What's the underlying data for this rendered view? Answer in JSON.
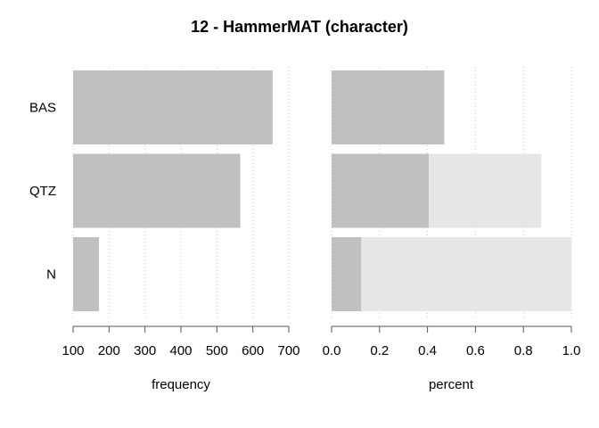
{
  "chart_data": [
    {
      "type": "bar",
      "orientation": "horizontal",
      "title": "12 - HammerMAT (character)",
      "categories": [
        "BAS",
        "QTZ",
        "N"
      ],
      "values": [
        655,
        565,
        172
      ],
      "xlabel": "frequency",
      "xlim": [
        100,
        700
      ],
      "xticks": [
        "100",
        "200",
        "300",
        "400",
        "500",
        "600",
        "700"
      ],
      "grid": "vertical dotted",
      "colors": {
        "bar": "#c0c0c0"
      }
    },
    {
      "type": "bar",
      "orientation": "horizontal",
      "categories": [
        "BAS",
        "QTZ",
        "N"
      ],
      "series": [
        {
          "values": [
            0.47,
            0.405,
            0.123
          ]
        },
        {
          "values": [
            0.47,
            0.875,
            1.0
          ]
        }
      ],
      "xlabel": "percent",
      "xlim": [
        0,
        1
      ],
      "xticks": [
        "0.0",
        "0.2",
        "0.4",
        "0.6",
        "0.8",
        "1.0"
      ],
      "grid": "vertical dotted",
      "colors": {
        "share": "#c0c0c0",
        "cumulative": "#e6e6e6"
      }
    }
  ],
  "title": "12 - HammerMAT (character)"
}
